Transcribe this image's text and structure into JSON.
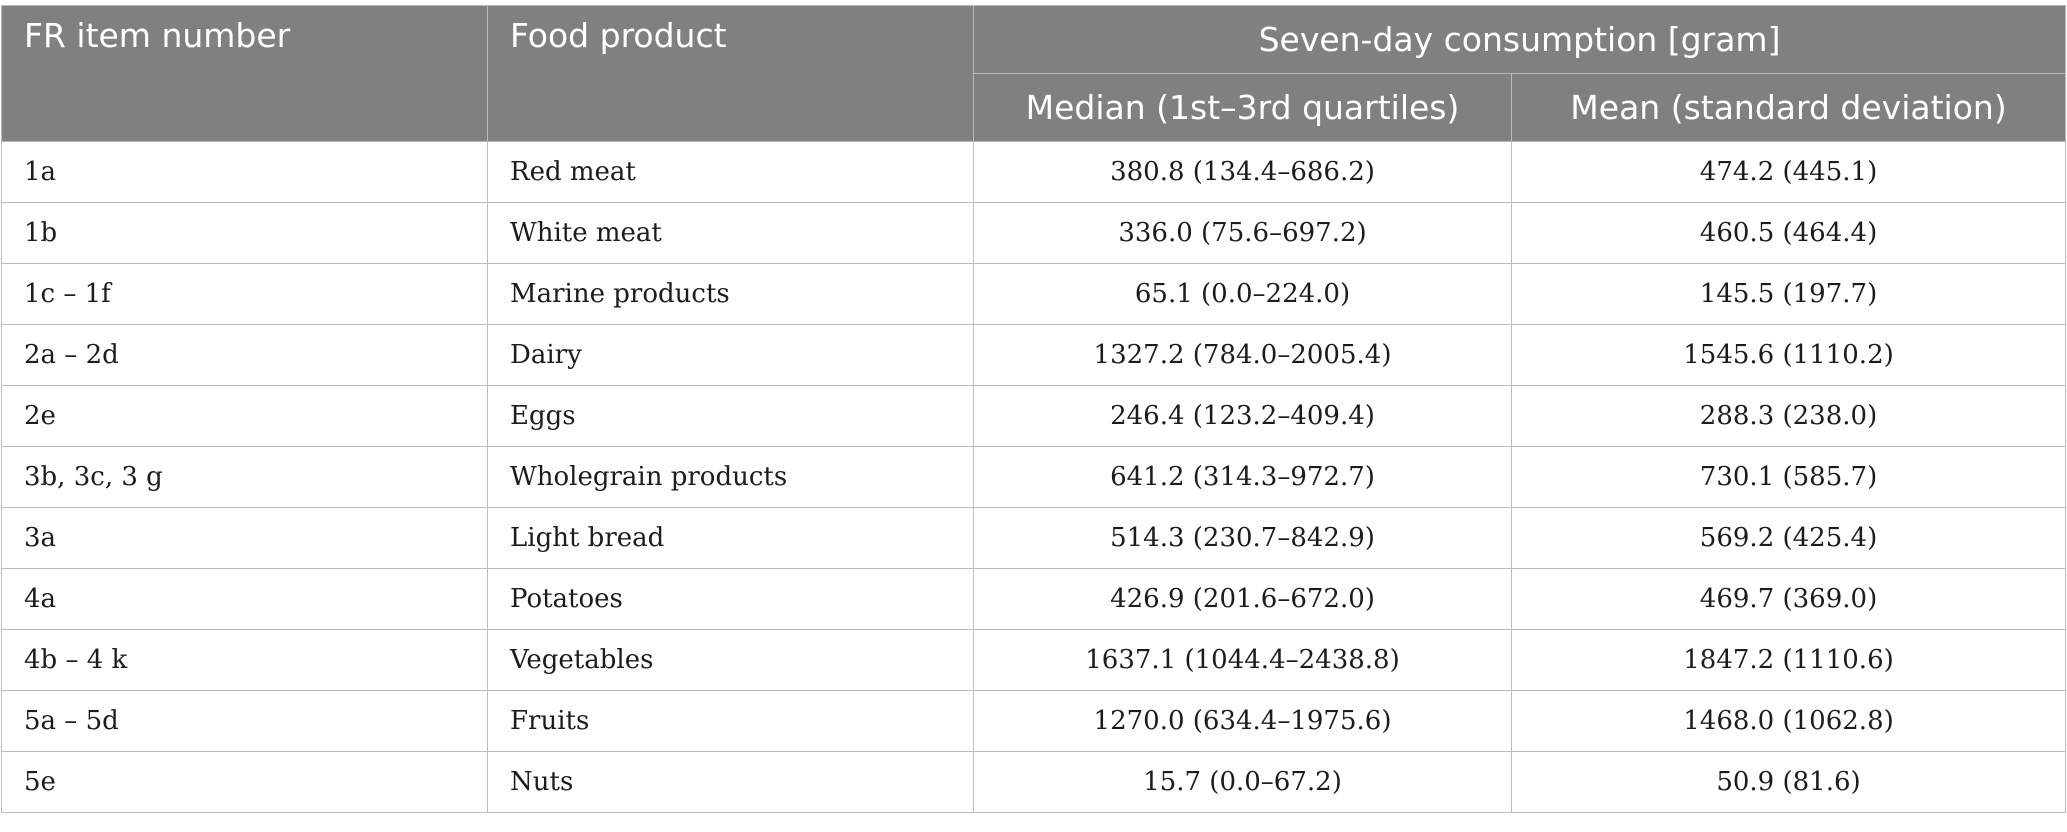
{
  "header": {
    "col_item": "FR item number",
    "col_food": "Food product",
    "group_label": "Seven-day consumption [gram]",
    "col_median": "Median (1st–3rd quartiles)",
    "col_mean": "Mean (standard deviation)"
  },
  "rows": [
    {
      "item": "1a",
      "food": "Red meat",
      "median": "380.8 (134.4–686.2)",
      "mean": "474.2 (445.1)"
    },
    {
      "item": "1b",
      "food": "White meat",
      "median": "336.0 (75.6–697.2)",
      "mean": "460.5 (464.4)"
    },
    {
      "item": "1c – 1f",
      "food": "Marine products",
      "median": "65.1 (0.0–224.0)",
      "mean": "145.5 (197.7)"
    },
    {
      "item": "2a – 2d",
      "food": "Dairy",
      "median": "1327.2 (784.0–2005.4)",
      "mean": "1545.6 (1110.2)"
    },
    {
      "item": "2e",
      "food": "Eggs",
      "median": "246.4 (123.2–409.4)",
      "mean": "288.3 (238.0)"
    },
    {
      "item": "3b, 3c, 3 g",
      "food": "Wholegrain products",
      "median": "641.2 (314.3–972.7)",
      "mean": "730.1 (585.7)"
    },
    {
      "item": "3a",
      "food": "Light bread",
      "median": "514.3 (230.7–842.9)",
      "mean": "569.2 (425.4)"
    },
    {
      "item": "4a",
      "food": "Potatoes",
      "median": "426.9 (201.6–672.0)",
      "mean": "469.7 (369.0)"
    },
    {
      "item": "4b – 4 k",
      "food": "Vegetables",
      "median": "1637.1 (1044.4–2438.8)",
      "mean": "1847.2 (1110.6)"
    },
    {
      "item": "5a – 5d",
      "food": "Fruits",
      "median": "1270.0 (634.4–1975.6)",
      "mean": "1468.0 (1062.8)"
    },
    {
      "item": "5e",
      "food": "Nuts",
      "median": "15.7 (0.0–67.2)",
      "mean": "50.9 (81.6)"
    }
  ]
}
